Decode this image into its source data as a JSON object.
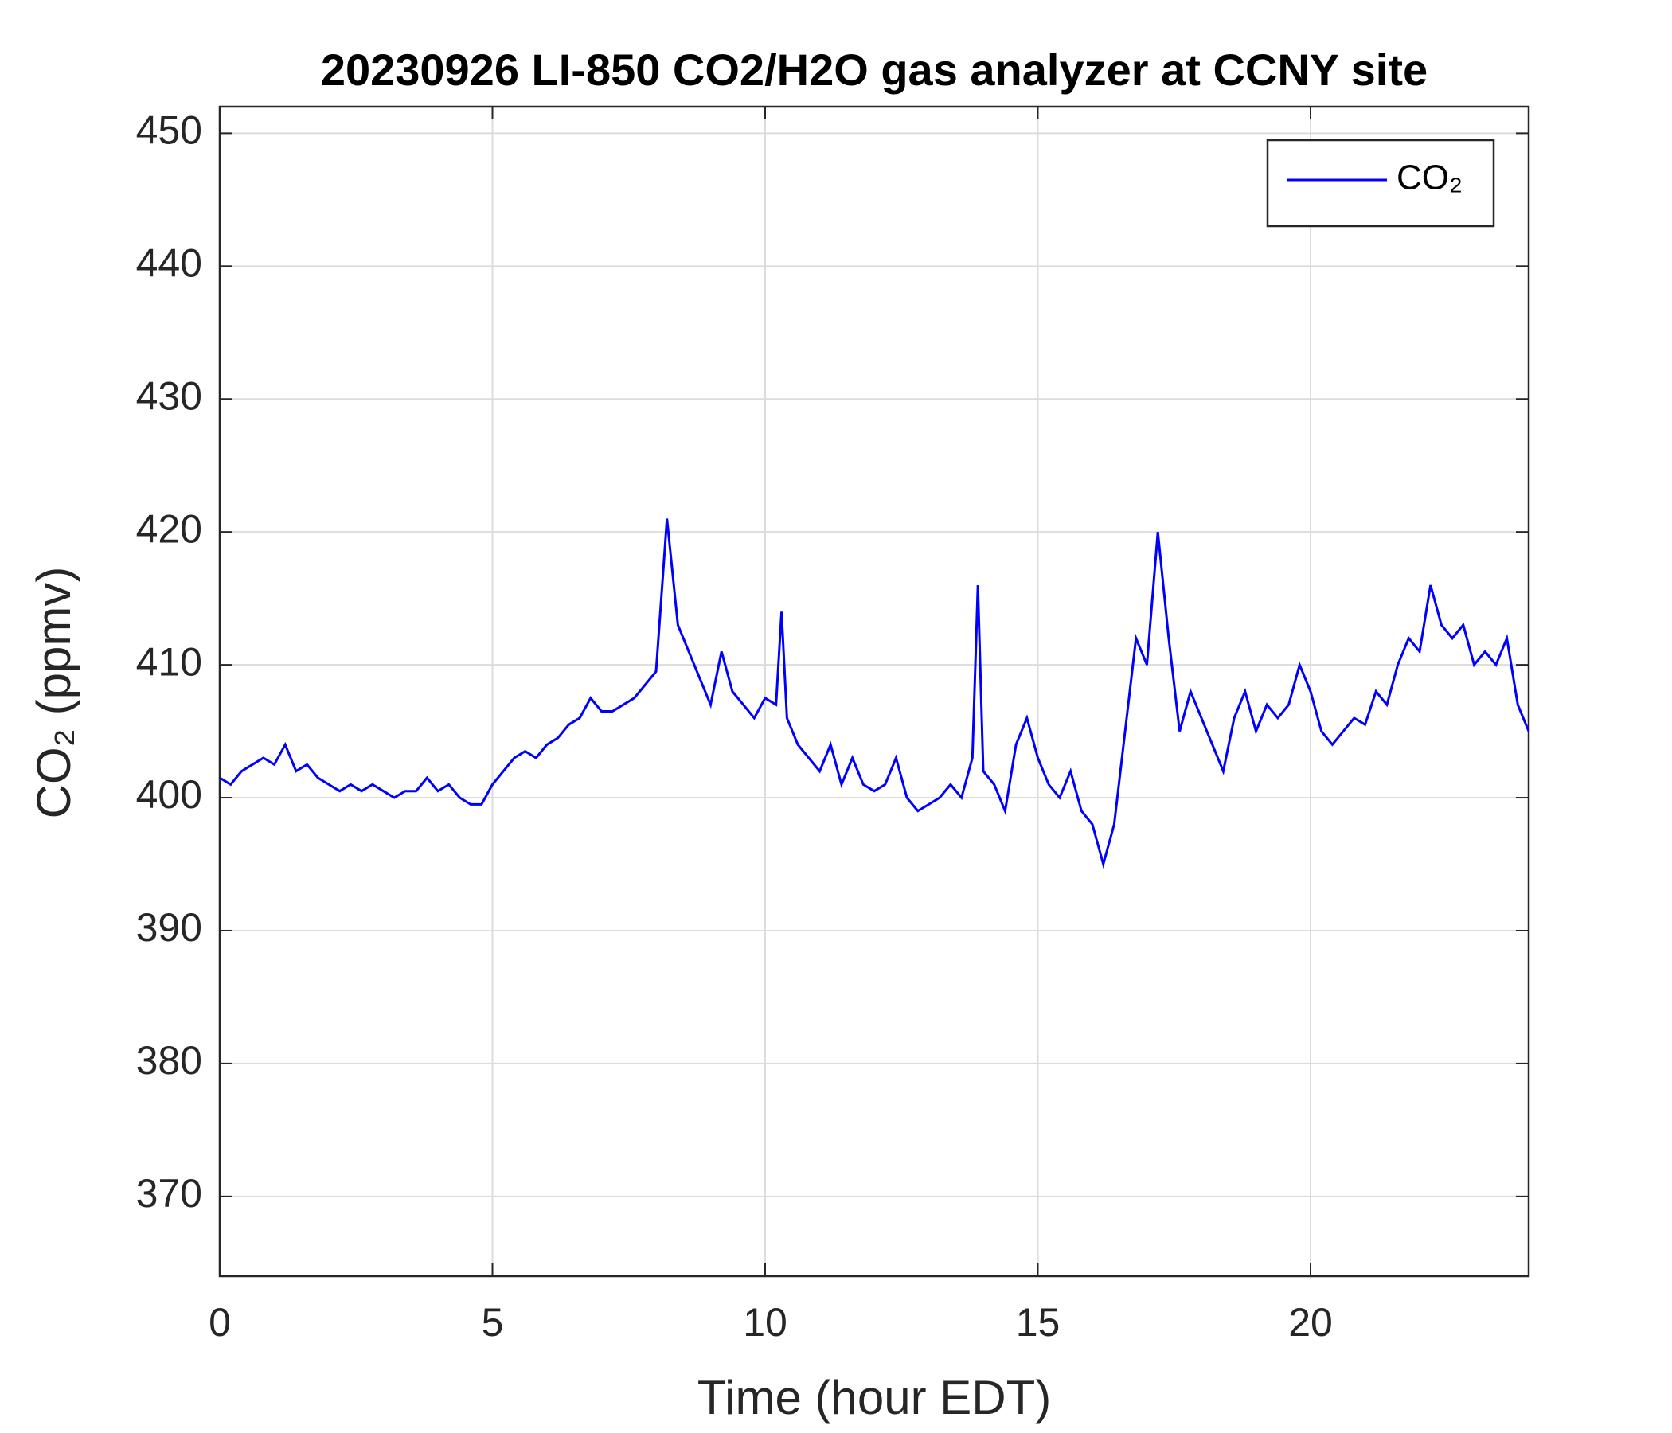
{
  "chart_data": {
    "type": "line",
    "title": "20230926 LI-850 CO2/H2O gas analyzer at CCNY site",
    "xlabel": "Time (hour EDT)",
    "ylabel": "CO₂ (ppmv)",
    "xlim": [
      0,
      24
    ],
    "xticks": [
      0,
      5,
      10,
      15,
      20
    ],
    "ylim": [
      364,
      452
    ],
    "yticks": [
      370,
      380,
      390,
      400,
      410,
      420,
      430,
      440,
      450
    ],
    "grid": true,
    "legend": "upper right",
    "x": [
      0,
      0.2,
      0.4,
      0.6,
      0.8,
      1.0,
      1.2,
      1.4,
      1.6,
      1.8,
      2.0,
      2.2,
      2.4,
      2.6,
      2.8,
      3.0,
      3.2,
      3.4,
      3.6,
      3.8,
      4.0,
      4.2,
      4.4,
      4.6,
      4.8,
      5.0,
      5.2,
      5.4,
      5.6,
      5.8,
      6.0,
      6.2,
      6.4,
      6.6,
      6.8,
      7.0,
      7.2,
      7.4,
      7.6,
      7.8,
      8.0,
      8.2,
      8.4,
      8.6,
      8.8,
      9.0,
      9.2,
      9.4,
      9.6,
      9.8,
      10.0,
      10.2,
      10.3,
      10.4,
      10.6,
      10.8,
      11.0,
      11.2,
      11.4,
      11.6,
      11.8,
      12.0,
      12.2,
      12.4,
      12.6,
      12.8,
      13.0,
      13.2,
      13.4,
      13.6,
      13.8,
      13.9,
      14.0,
      14.2,
      14.4,
      14.6,
      14.8,
      15.0,
      15.2,
      15.4,
      15.6,
      15.8,
      16.0,
      16.2,
      16.4,
      16.6,
      16.8,
      17.0,
      17.2,
      17.4,
      17.6,
      17.8,
      18.0,
      18.2,
      18.4,
      18.6,
      18.8,
      19.0,
      19.2,
      19.4,
      19.6,
      19.8,
      20.0,
      20.2,
      20.4,
      20.6,
      20.8,
      21.0,
      21.2,
      21.4,
      21.6,
      21.8,
      22.0,
      22.2,
      22.4,
      22.6,
      22.8,
      23.0,
      23.2,
      23.4,
      23.6,
      23.8,
      24.0
    ],
    "series": [
      {
        "name": "CO₂",
        "color": "#0000ff",
        "values": [
          401.5,
          401,
          402,
          402.5,
          403,
          402.5,
          404,
          402,
          402.5,
          401.5,
          401,
          400.5,
          401,
          400.5,
          401,
          400.5,
          400,
          400.5,
          400.5,
          401.5,
          400.5,
          401,
          400,
          399.5,
          399.5,
          401,
          402,
          403,
          403.5,
          403,
          404,
          404.5,
          405.5,
          406,
          407.5,
          406.5,
          406.5,
          407,
          407.5,
          408.5,
          409.5,
          421,
          413,
          411,
          409,
          407,
          411,
          408,
          407,
          406,
          407.5,
          407,
          414,
          406,
          404,
          403,
          402,
          404,
          401,
          403,
          401,
          400.5,
          401,
          403,
          400,
          399,
          399.5,
          400,
          401,
          400,
          403,
          416,
          402,
          401,
          399,
          404,
          406,
          403,
          401,
          400,
          402,
          399,
          398,
          395,
          398,
          405,
          412,
          410,
          420,
          412,
          405,
          408,
          406,
          404,
          402,
          406,
          408,
          405,
          407,
          406,
          407,
          410,
          408,
          405,
          404,
          405,
          406,
          405.5,
          408,
          407,
          410,
          412,
          411,
          416,
          413,
          412,
          413,
          410,
          411,
          410,
          412,
          407,
          405
        ]
      }
    ]
  }
}
